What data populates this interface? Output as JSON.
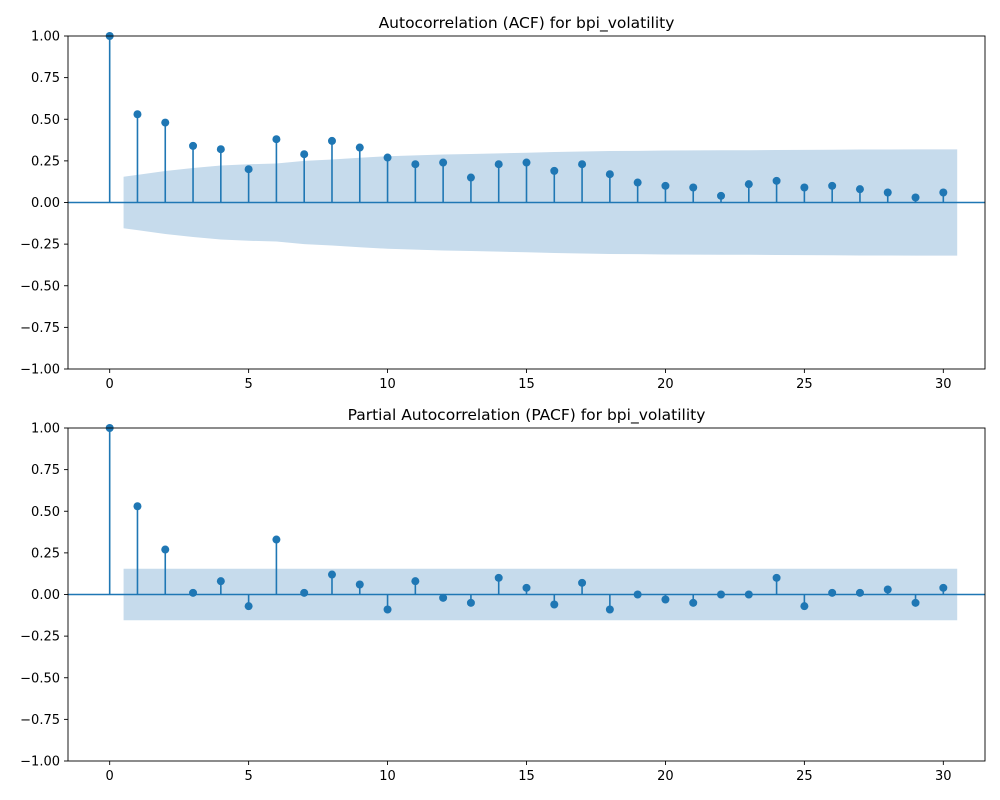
{
  "colors": {
    "stem": "#1f77b4",
    "marker": "#1f77b4",
    "baseline": "#1f77b4",
    "confidence_band": "#c6dbec",
    "axis": "#000000",
    "background": "#ffffff"
  },
  "chart_data": [
    {
      "type": "stem",
      "title": "Autocorrelation (ACF) for bpi_volatility",
      "xlabel": "",
      "ylabel": "",
      "xlim": [
        -1.5,
        31.5
      ],
      "ylim": [
        -1.0,
        1.0
      ],
      "xticks": [
        "0",
        "5",
        "10",
        "15",
        "20",
        "25",
        "30"
      ],
      "yticks": [
        "1.00",
        "0.75",
        "0.50",
        "0.25",
        "0.00",
        "−0.25",
        "−0.50",
        "−0.75",
        "−1.00"
      ],
      "grid": false,
      "lags": [
        0,
        1,
        2,
        3,
        4,
        5,
        6,
        7,
        8,
        9,
        10,
        11,
        12,
        13,
        14,
        15,
        16,
        17,
        18,
        19,
        20,
        21,
        22,
        23,
        24,
        25,
        26,
        27,
        28,
        29,
        30
      ],
      "values": [
        1.0,
        0.53,
        0.48,
        0.34,
        0.32,
        0.2,
        0.38,
        0.29,
        0.37,
        0.33,
        0.27,
        0.23,
        0.24,
        0.15,
        0.23,
        0.24,
        0.19,
        0.23,
        0.17,
        0.12,
        0.1,
        0.09,
        0.04,
        0.11,
        0.13,
        0.09,
        0.1,
        0.08,
        0.06,
        0.03,
        0.06
      ],
      "confidence_band": {
        "x": [
          0.5,
          1,
          2,
          3,
          4,
          5,
          6,
          7,
          8,
          9,
          10,
          11,
          12,
          13,
          14,
          15,
          16,
          17,
          18,
          19,
          20,
          21,
          22,
          23,
          24,
          25,
          26,
          27,
          28,
          29,
          30,
          30.5
        ],
        "upper": [
          0.155,
          0.166,
          0.189,
          0.207,
          0.222,
          0.23,
          0.234,
          0.25,
          0.258,
          0.269,
          0.278,
          0.283,
          0.288,
          0.291,
          0.295,
          0.299,
          0.303,
          0.306,
          0.309,
          0.31,
          0.312,
          0.313,
          0.314,
          0.314,
          0.315,
          0.316,
          0.317,
          0.318,
          0.318,
          0.319,
          0.319,
          0.319
        ]
      }
    },
    {
      "type": "stem",
      "title": "Partial Autocorrelation (PACF) for bpi_volatility",
      "xlabel": "",
      "ylabel": "",
      "xlim": [
        -1.5,
        31.5
      ],
      "ylim": [
        -1.0,
        1.0
      ],
      "xticks": [
        "0",
        "5",
        "10",
        "15",
        "20",
        "25",
        "30"
      ],
      "yticks": [
        "1.00",
        "0.75",
        "0.50",
        "0.25",
        "0.00",
        "−0.25",
        "−0.50",
        "−0.75",
        "−1.00"
      ],
      "grid": false,
      "lags": [
        0,
        1,
        2,
        3,
        4,
        5,
        6,
        7,
        8,
        9,
        10,
        11,
        12,
        13,
        14,
        15,
        16,
        17,
        18,
        19,
        20,
        21,
        22,
        23,
        24,
        25,
        26,
        27,
        28,
        29,
        30
      ],
      "values": [
        1.0,
        0.53,
        0.27,
        0.01,
        0.08,
        -0.07,
        0.33,
        0.01,
        0.12,
        0.06,
        -0.09,
        0.08,
        -0.02,
        -0.05,
        0.1,
        0.04,
        -0.06,
        0.07,
        -0.09,
        0.0,
        -0.03,
        -0.05,
        0.0,
        0.0,
        0.1,
        -0.07,
        0.01,
        0.01,
        0.03,
        -0.05,
        0.04
      ],
      "confidence_band": {
        "x": [
          0.5,
          30.5
        ],
        "upper": [
          0.155,
          0.155
        ]
      }
    }
  ]
}
